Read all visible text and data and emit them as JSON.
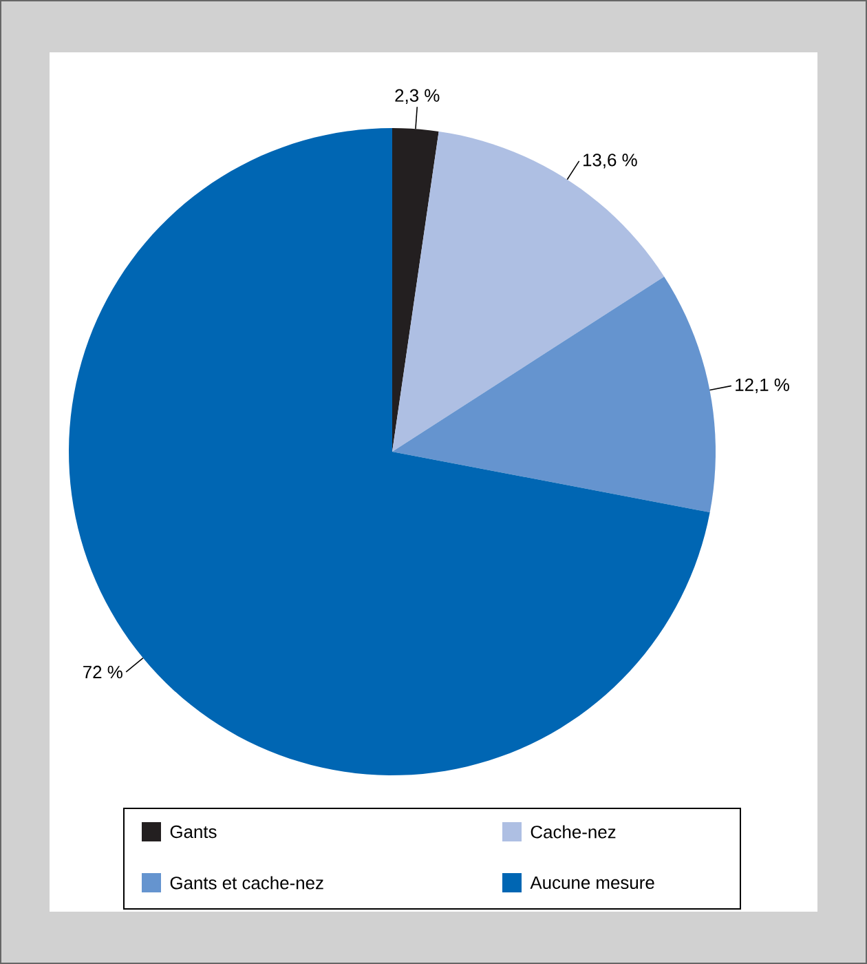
{
  "chart_data": {
    "type": "pie",
    "categories": [
      "Gants",
      "Cache-nez",
      "Gants et cache-nez",
      "Aucune mesure"
    ],
    "values": [
      2.3,
      13.6,
      12.1,
      72
    ],
    "colors": [
      "#231f20",
      "#aebfe3",
      "#6594cf",
      "#0066b3"
    ],
    "value_labels": [
      "2,3 %",
      "13,6 %",
      "12,1 %",
      "72 %"
    ],
    "legend": "bottom"
  }
}
